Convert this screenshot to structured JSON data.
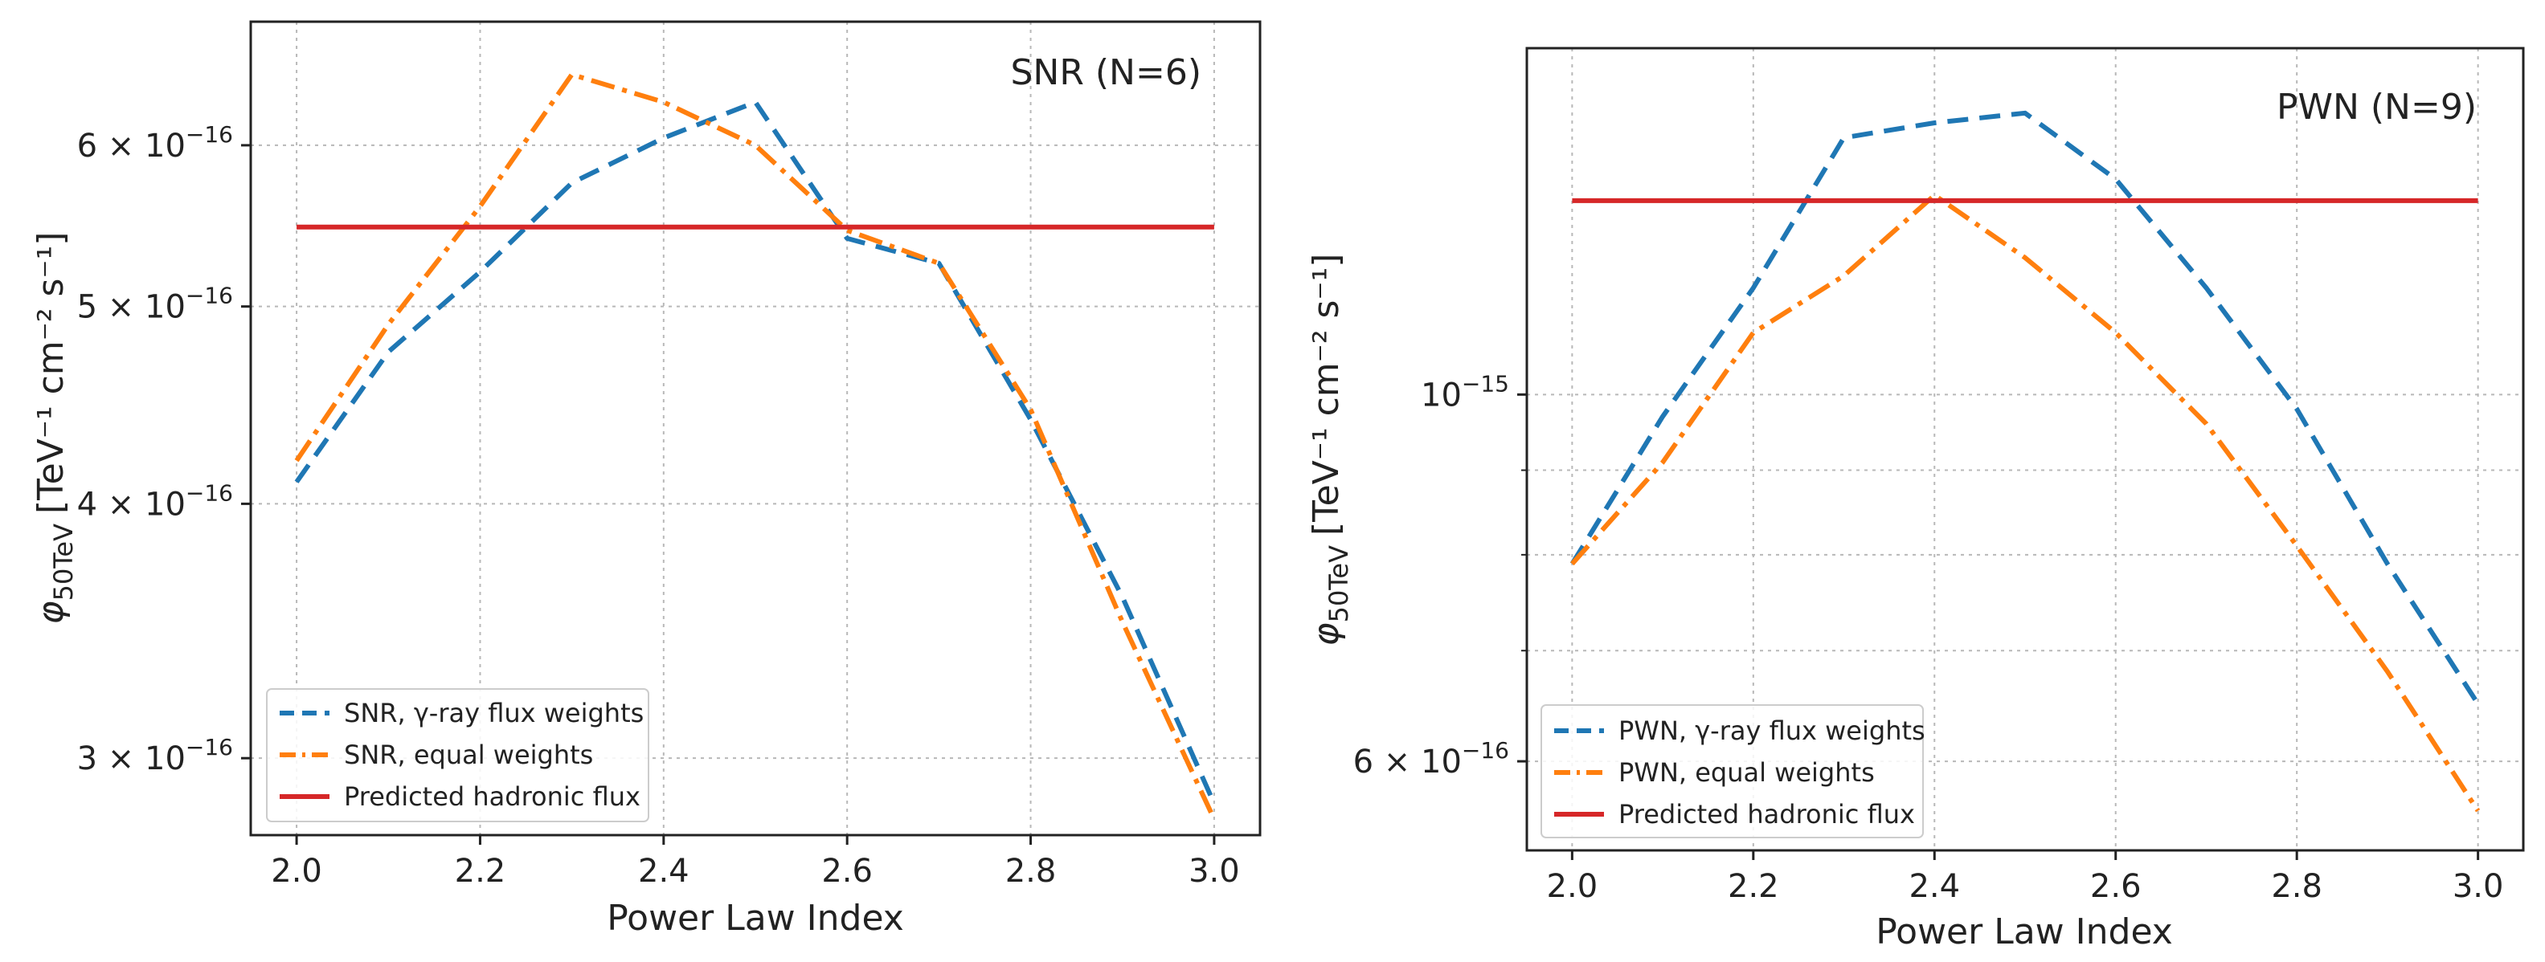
{
  "chart_data": [
    {
      "type": "line",
      "annotation": "SNR (N=6)",
      "xlabel": "Power Law Index",
      "ylabel_symbol": "φ",
      "ylabel_sub": "50TeV",
      "ylabel_units": "[TeV⁻¹ cm⁻² s⁻¹]",
      "yscale": "log",
      "xlim": [
        1.95,
        3.05
      ],
      "ylim": [
        2.75e-16,
        6.9e-16
      ],
      "x": [
        2.0,
        2.1,
        2.2,
        2.3,
        2.4,
        2.5,
        2.6,
        2.7,
        2.8,
        2.9,
        3.0
      ],
      "xticks": [
        {
          "v": 2.0,
          "label": "2.0"
        },
        {
          "v": 2.2,
          "label": "2.2"
        },
        {
          "v": 2.4,
          "label": "2.4"
        },
        {
          "v": 2.6,
          "label": "2.6"
        },
        {
          "v": 2.8,
          "label": "2.8"
        },
        {
          "v": 3.0,
          "label": "3.0"
        }
      ],
      "yticks": [
        {
          "v": 3e-16,
          "mant": "3 × 10",
          "exp": "−16"
        },
        {
          "v": 4e-16,
          "mant": "4 × 10",
          "exp": "−16"
        },
        {
          "v": 5e-16,
          "mant": "5 × 10",
          "exp": "−16"
        },
        {
          "v": 6e-16,
          "mant": "6 × 10",
          "exp": "−16"
        }
      ],
      "minor_yticks": [],
      "series": [
        {
          "name": "SNR, γ-ray flux weights",
          "color": "#1f77b4",
          "style": "dashed",
          "values": [
            4.1e-16,
            4.75e-16,
            5.2e-16,
            5.75e-16,
            6.05e-16,
            6.3e-16,
            5.4e-16,
            5.25e-16,
            4.4e-16,
            3.6e-16,
            2.85e-16
          ]
        },
        {
          "name": "SNR, equal weights",
          "color": "#ff7f0e",
          "style": "dashdot",
          "values": [
            4.2e-16,
            4.9e-16,
            5.6e-16,
            6.5e-16,
            6.3e-16,
            6e-16,
            5.45e-16,
            5.25e-16,
            4.45e-16,
            3.5e-16,
            2.8e-16
          ]
        },
        {
          "name": "Predicted hadronic flux",
          "color": "#d62728",
          "style": "solid",
          "values": [
            5.47e-16,
            5.47e-16,
            5.47e-16,
            5.47e-16,
            5.47e-16,
            5.47e-16,
            5.47e-16,
            5.47e-16,
            5.47e-16,
            5.47e-16,
            5.47e-16
          ]
        }
      ]
    },
    {
      "type": "line",
      "annotation": "PWN (N=9)",
      "xlabel": "Power Law Index",
      "ylabel_symbol": "φ",
      "ylabel_sub": "50TeV",
      "ylabel_units": "[TeV⁻¹ cm⁻² s⁻¹]",
      "yscale": "log",
      "xlim": [
        1.95,
        3.05
      ],
      "ylim": [
        5.3e-16,
        1.62e-15
      ],
      "x": [
        2.0,
        2.1,
        2.2,
        2.3,
        2.4,
        2.5,
        2.6,
        2.7,
        2.8,
        2.9,
        3.0
      ],
      "xticks": [
        {
          "v": 2.0,
          "label": "2.0"
        },
        {
          "v": 2.2,
          "label": "2.2"
        },
        {
          "v": 2.4,
          "label": "2.4"
        },
        {
          "v": 2.6,
          "label": "2.6"
        },
        {
          "v": 2.8,
          "label": "2.8"
        },
        {
          "v": 3.0,
          "label": "3.0"
        }
      ],
      "yticks": [
        {
          "v": 6e-16,
          "mant": "6 × 10",
          "exp": "−16"
        },
        {
          "v": 1e-15,
          "mant": "10",
          "exp": "−15"
        }
      ],
      "minor_yticks": [
        7e-16,
        8e-16,
        9e-16
      ],
      "series": [
        {
          "name": "PWN, γ-ray flux weights",
          "color": "#1f77b4",
          "style": "dashed",
          "values": [
            7.9e-16,
            9.7e-16,
            1.16e-15,
            1.43e-15,
            1.46e-15,
            1.48e-15,
            1.35e-15,
            1.16e-15,
            9.8e-16,
            7.9e-16,
            6.5e-16
          ]
        },
        {
          "name": "PWN, equal weights",
          "color": "#ff7f0e",
          "style": "dashdot",
          "values": [
            7.9e-16,
            9.1e-16,
            1.09e-15,
            1.18e-15,
            1.32e-15,
            1.21e-15,
            1.09e-15,
            9.6e-16,
            8.1e-16,
            6.8e-16,
            5.6e-16
          ]
        },
        {
          "name": "Predicted hadronic flux",
          "color": "#d62728",
          "style": "solid",
          "values": [
            1.31e-15,
            1.31e-15,
            1.31e-15,
            1.31e-15,
            1.31e-15,
            1.31e-15,
            1.31e-15,
            1.31e-15,
            1.31e-15,
            1.31e-15,
            1.31e-15
          ]
        }
      ]
    }
  ]
}
